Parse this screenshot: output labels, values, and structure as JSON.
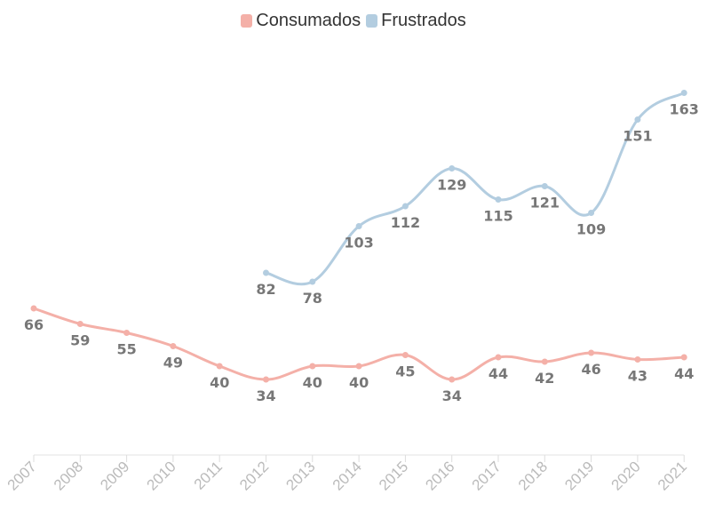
{
  "chart_data": {
    "type": "line",
    "title": "",
    "xlabel": "",
    "ylabel": "",
    "categories": [
      "2007",
      "2008",
      "2009",
      "2010",
      "2011",
      "2012",
      "2013",
      "2014",
      "2015",
      "2016",
      "2017",
      "2018",
      "2019",
      "2020",
      "2021"
    ],
    "ylim": [
      0,
      175
    ],
    "legend_position": "top-center",
    "grid": false,
    "series": [
      {
        "name": "Consumados",
        "color": "#f4b0a8",
        "values": [
          66,
          59,
          55,
          49,
          40,
          34,
          40,
          40,
          45,
          34,
          44,
          42,
          46,
          43,
          44
        ]
      },
      {
        "name": "Frustrados",
        "color": "#b3cde0",
        "values": [
          null,
          null,
          null,
          null,
          null,
          82,
          78,
          103,
          112,
          129,
          115,
          121,
          109,
          151,
          163
        ]
      }
    ]
  }
}
